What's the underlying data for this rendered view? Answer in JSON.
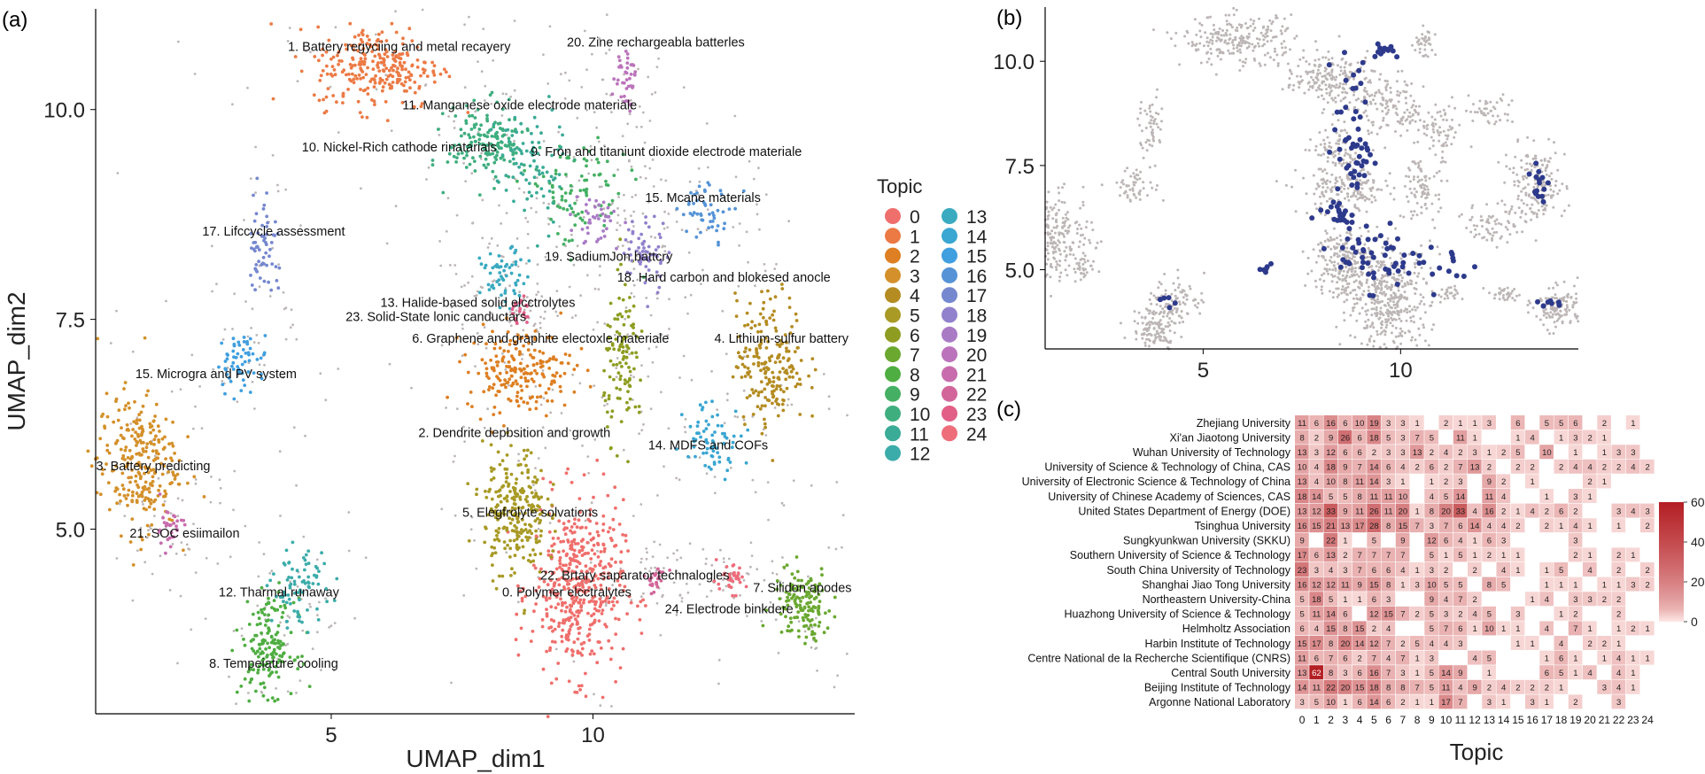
{
  "panels": {
    "a": "(a)",
    "b": "(b)",
    "c": "(c)"
  },
  "colors": {
    "topic": [
      "#ef6f6c",
      "#ec7a45",
      "#dd7f22",
      "#d4902a",
      "#b48c22",
      "#a89a25",
      "#8e9d21",
      "#6aa830",
      "#4fae42",
      "#45b063",
      "#3fae7f",
      "#3aab96",
      "#3cacaa",
      "#3aaac0",
      "#3aa6d2",
      "#3f9fdf",
      "#5593d6",
      "#7587cf",
      "#9181cc",
      "#a97bc5",
      "#bb74bb",
      "#c86cad",
      "#d2669a",
      "#e25f88",
      "#ee6d7b"
    ],
    "grey": "#bdb6b6",
    "highlight": "#2d3a8c",
    "heat_low": "#fde8e6",
    "heat_high": "#b41f24"
  },
  "chart_data": [
    {
      "id": "a",
      "type": "scatter",
      "xlabel": "UMAP_dim1",
      "ylabel": "UMAP_dim2",
      "xlim": [
        0.5,
        15
      ],
      "ylim": [
        2.8,
        11.2
      ],
      "xticks": [
        5,
        10
      ],
      "yticks": [
        5.0,
        7.5,
        10.0
      ],
      "legend_title": "Topic",
      "legend": [
        "0",
        "1",
        "2",
        "3",
        "4",
        "5",
        "6",
        "7",
        "8",
        "9",
        "10",
        "11",
        "12",
        "13",
        "14",
        "15",
        "16",
        "17",
        "18",
        "19",
        "20",
        "21",
        "22",
        "23",
        "24"
      ],
      "clusters": [
        {
          "topic": 0,
          "cx": 9.7,
          "cy": 4.3,
          "rx": 0.8,
          "ry": 0.95,
          "n": 460
        },
        {
          "topic": 1,
          "cx": 5.9,
          "cy": 10.5,
          "rx": 1.1,
          "ry": 0.45,
          "n": 260
        },
        {
          "topic": 2,
          "cx": 8.6,
          "cy": 6.9,
          "rx": 0.9,
          "ry": 0.45,
          "n": 200
        },
        {
          "topic": 3,
          "cx": 1.3,
          "cy": 5.8,
          "rx": 0.7,
          "ry": 0.75,
          "n": 260
        },
        {
          "topic": 4,
          "cx": 13.4,
          "cy": 7.0,
          "rx": 0.6,
          "ry": 0.7,
          "n": 200
        },
        {
          "topic": 5,
          "cx": 8.5,
          "cy": 5.2,
          "rx": 0.55,
          "ry": 0.7,
          "n": 250
        },
        {
          "topic": 6,
          "cx": 10.6,
          "cy": 7.0,
          "rx": 0.35,
          "ry": 0.8,
          "n": 110
        },
        {
          "topic": 7,
          "cx": 14.0,
          "cy": 4.1,
          "rx": 0.5,
          "ry": 0.4,
          "n": 140
        },
        {
          "topic": 8,
          "cx": 3.8,
          "cy": 3.6,
          "rx": 0.45,
          "ry": 0.5,
          "n": 160
        },
        {
          "topic": 9,
          "cx": 9.7,
          "cy": 9.0,
          "rx": 0.9,
          "ry": 0.6,
          "n": 90
        },
        {
          "topic": 10,
          "cx": 8.0,
          "cy": 9.6,
          "rx": 0.7,
          "ry": 0.4,
          "n": 160
        },
        {
          "topic": 11,
          "cx": 8.8,
          "cy": 9.3,
          "rx": 0.6,
          "ry": 0.7,
          "n": 80
        },
        {
          "topic": 12,
          "cx": 4.4,
          "cy": 4.3,
          "rx": 0.5,
          "ry": 0.4,
          "n": 80
        },
        {
          "topic": 13,
          "cx": 8.3,
          "cy": 8.0,
          "rx": 0.4,
          "ry": 0.3,
          "n": 60
        },
        {
          "topic": 14,
          "cx": 12.3,
          "cy": 6.1,
          "rx": 0.5,
          "ry": 0.4,
          "n": 70
        },
        {
          "topic": 15,
          "cx": 3.3,
          "cy": 7.0,
          "rx": 0.45,
          "ry": 0.3,
          "n": 60
        },
        {
          "topic": 16,
          "cx": 12.2,
          "cy": 8.8,
          "rx": 0.5,
          "ry": 0.3,
          "n": 50
        },
        {
          "topic": 17,
          "cx": 3.7,
          "cy": 8.4,
          "rx": 0.25,
          "ry": 0.6,
          "n": 60
        },
        {
          "topic": 18,
          "cx": 11.0,
          "cy": 8.3,
          "rx": 0.4,
          "ry": 0.4,
          "n": 60
        },
        {
          "topic": 19,
          "cx": 10.1,
          "cy": 8.7,
          "rx": 0.4,
          "ry": 0.3,
          "n": 40
        },
        {
          "topic": 20,
          "cx": 10.6,
          "cy": 10.4,
          "rx": 0.2,
          "ry": 0.35,
          "n": 40
        },
        {
          "topic": 21,
          "cx": 1.9,
          "cy": 5.0,
          "rx": 0.25,
          "ry": 0.25,
          "n": 30
        },
        {
          "topic": 22,
          "cx": 11.2,
          "cy": 4.4,
          "rx": 0.2,
          "ry": 0.15,
          "n": 25
        },
        {
          "topic": 23,
          "cx": 8.6,
          "cy": 7.6,
          "rx": 0.2,
          "ry": 0.15,
          "n": 20
        },
        {
          "topic": 24,
          "cx": 12.6,
          "cy": 4.4,
          "rx": 0.3,
          "ry": 0.15,
          "n": 35
        }
      ],
      "annotations": [
        {
          "text": "1. Battery regyciing and metal recayery",
          "x": 6.3,
          "y": 10.7
        },
        {
          "text": "20. Zine rechargeabla batterles",
          "x": 11.2,
          "y": 10.75
        },
        {
          "text": "11. Manganese oxide electrode materiale",
          "x": 8.6,
          "y": 10.0
        },
        {
          "text": "10. Nickel-Rich cathode rinatarials",
          "x": 6.3,
          "y": 9.5
        },
        {
          "text": "9. Fron and titaniunt dioxide electrode materiale",
          "x": 11.4,
          "y": 9.45
        },
        {
          "text": "15. Mcane materials",
          "x": 12.1,
          "y": 8.9
        },
        {
          "text": "17. Lifccycle assessment",
          "x": 3.9,
          "y": 8.5
        },
        {
          "text": "19. SadiumJon battcry",
          "x": 10.3,
          "y": 8.2
        },
        {
          "text": "18. Hard carbon and blokesed anocle",
          "x": 12.5,
          "y": 7.95
        },
        {
          "text": "13. Halide-based solid elcctrolytes",
          "x": 7.8,
          "y": 7.65
        },
        {
          "text": "23. Solid-State lonic canductars",
          "x": 7.0,
          "y": 7.48
        },
        {
          "text": "6. Graphene and graphite electoxle materiale",
          "x": 9.0,
          "y": 7.22
        },
        {
          "text": "4. Lithium-sulfur battery",
          "x": 13.6,
          "y": 7.22
        },
        {
          "text": "15. Microgra and PV system",
          "x": 2.8,
          "y": 6.8
        },
        {
          "text": "2. Dendrite depbsition and growth",
          "x": 8.5,
          "y": 6.1
        },
        {
          "text": "14. MDFS and COFs",
          "x": 12.2,
          "y": 5.95
        },
        {
          "text": "3. Battery predicting",
          "x": 1.6,
          "y": 5.7
        },
        {
          "text": "5. Elegfrolyte solvations",
          "x": 8.8,
          "y": 5.15
        },
        {
          "text": "21. SOC esiimailon",
          "x": 2.2,
          "y": 4.9
        },
        {
          "text": "22. Brtary saparator technalogles",
          "x": 10.8,
          "y": 4.4
        },
        {
          "text": "7. Silidon apodes",
          "x": 14.0,
          "y": 4.25
        },
        {
          "text": "12. Tharmal runaway",
          "x": 4.0,
          "y": 4.2
        },
        {
          "text": "0. Polymer elcctralytes",
          "x": 9.5,
          "y": 4.2
        },
        {
          "text": "24. Electrode binkdere",
          "x": 12.6,
          "y": 4.0
        },
        {
          "text": "8. Tempeiature cooling",
          "x": 3.9,
          "y": 3.35
        }
      ]
    },
    {
      "id": "b",
      "type": "scatter",
      "xlim": [
        1,
        14.5
      ],
      "ylim": [
        3.1,
        11.3
      ],
      "xticks": [
        5,
        10
      ],
      "yticks": [
        5.0,
        7.5,
        10.0
      ],
      "series": [
        {
          "values_from": "grey background (all papers)"
        },
        {
          "values_from": "highlighted papers"
        }
      ],
      "highlight_groups": [
        {
          "cx": 8.8,
          "cy": 8.0,
          "rx": 0.45,
          "ry": 1.9,
          "n": 60
        },
        {
          "cx": 9.5,
          "cy": 5.3,
          "rx": 1.0,
          "ry": 0.7,
          "n": 50
        },
        {
          "cx": 8.2,
          "cy": 6.3,
          "rx": 0.8,
          "ry": 0.3,
          "n": 15
        },
        {
          "cx": 9.6,
          "cy": 10.3,
          "rx": 0.4,
          "ry": 0.2,
          "n": 12
        },
        {
          "cx": 13.5,
          "cy": 7.0,
          "rx": 0.25,
          "ry": 0.6,
          "n": 15
        },
        {
          "cx": 13.8,
          "cy": 4.2,
          "rx": 0.3,
          "ry": 0.1,
          "n": 8
        },
        {
          "cx": 4.1,
          "cy": 4.3,
          "rx": 0.3,
          "ry": 0.15,
          "n": 6
        },
        {
          "cx": 11.4,
          "cy": 5.0,
          "rx": 0.6,
          "ry": 0.5,
          "n": 12
        },
        {
          "cx": 6.6,
          "cy": 5.0,
          "rx": 0.2,
          "ry": 0.2,
          "n": 6
        }
      ]
    },
    {
      "id": "c",
      "type": "heatmap",
      "xlabel": "Topic",
      "categories": [
        "0",
        "1",
        "2",
        "3",
        "4",
        "5",
        "6",
        "7",
        "8",
        "9",
        "10",
        "11",
        "12",
        "13",
        "14",
        "15",
        "16",
        "17",
        "18",
        "19",
        "20",
        "21",
        "22",
        "23",
        "24"
      ],
      "rows": [
        "Zhejiang University",
        "Xi'an Jiaotong University",
        "Wuhan University of Technology",
        "University of Science & Technology of China, CAS",
        "University of Electronic Science & Technology of China",
        "University of Chinese Academy of Sciences, CAS",
        "United States Department of Energy (DOE)",
        "Tsinghua University",
        "Sungkyunkwan University (SKKU)",
        "Southern University of Science & Technology",
        "South China University of Technology",
        "Shanghai Jiao Tong University",
        "Northeastern University-China",
        "Huazhong University of Science & Technology",
        "Helmholtz Association",
        "Harbin Institute of Technology",
        "Centre National de la Recherche Scientifique (CNRS)",
        "Central South University",
        "Beijing Institute of Technology",
        "Argonne National Laboratory"
      ],
      "values": [
        [
          11,
          6,
          16,
          6,
          10,
          19,
          3,
          3,
          1,
          null,
          2,
          1,
          1,
          3,
          null,
          6,
          null,
          5,
          5,
          6,
          null,
          2,
          null,
          1,
          null
        ],
        [
          8,
          2,
          9,
          26,
          6,
          18,
          5,
          3,
          7,
          5,
          null,
          11,
          1,
          null,
          null,
          1,
          4,
          null,
          1,
          3,
          2,
          1,
          null,
          null,
          null
        ],
        [
          13,
          3,
          12,
          6,
          6,
          2,
          3,
          3,
          13,
          2,
          4,
          2,
          3,
          1,
          2,
          5,
          null,
          10,
          null,
          1,
          null,
          1,
          3,
          3,
          null
        ],
        [
          10,
          4,
          18,
          9,
          7,
          14,
          6,
          4,
          2,
          6,
          2,
          7,
          13,
          2,
          null,
          2,
          2,
          null,
          2,
          4,
          4,
          2,
          2,
          4,
          2
        ],
        [
          13,
          4,
          10,
          8,
          11,
          14,
          3,
          1,
          null,
          1,
          2,
          3,
          null,
          9,
          2,
          null,
          1,
          null,
          null,
          null,
          2,
          1,
          null,
          null,
          null
        ],
        [
          18,
          14,
          5,
          5,
          8,
          11,
          11,
          10,
          null,
          4,
          5,
          14,
          null,
          11,
          4,
          null,
          null,
          1,
          null,
          3,
          1,
          null,
          null,
          null,
          null
        ],
        [
          13,
          12,
          33,
          9,
          11,
          26,
          11,
          20,
          1,
          8,
          20,
          33,
          4,
          16,
          2,
          1,
          4,
          2,
          6,
          2,
          null,
          null,
          3,
          4,
          3
        ],
        [
          16,
          15,
          21,
          13,
          17,
          28,
          8,
          15,
          7,
          3,
          7,
          6,
          14,
          4,
          4,
          2,
          null,
          2,
          1,
          4,
          1,
          null,
          1,
          null,
          2
        ],
        [
          9,
          null,
          22,
          1,
          null,
          5,
          null,
          9,
          null,
          12,
          6,
          4,
          1,
          6,
          3,
          null,
          null,
          null,
          null,
          3,
          null,
          null,
          null,
          null,
          null
        ],
        [
          17,
          6,
          13,
          2,
          7,
          7,
          7,
          7,
          null,
          5,
          1,
          5,
          1,
          2,
          1,
          1,
          null,
          null,
          null,
          2,
          1,
          null,
          2,
          1,
          null
        ],
        [
          23,
          3,
          4,
          3,
          7,
          6,
          6,
          4,
          1,
          3,
          2,
          null,
          2,
          null,
          4,
          1,
          null,
          1,
          5,
          null,
          4,
          null,
          2,
          null,
          2
        ],
        [
          16,
          12,
          12,
          11,
          9,
          15,
          8,
          1,
          3,
          10,
          5,
          5,
          null,
          8,
          5,
          null,
          null,
          1,
          1,
          1,
          null,
          1,
          1,
          3,
          2
        ],
        [
          5,
          18,
          5,
          1,
          1,
          6,
          3,
          null,
          null,
          9,
          4,
          7,
          2,
          null,
          null,
          null,
          1,
          4,
          null,
          3,
          3,
          2,
          2,
          null,
          null
        ],
        [
          5,
          11,
          14,
          6,
          null,
          12,
          15,
          7,
          2,
          5,
          3,
          2,
          4,
          5,
          null,
          3,
          null,
          null,
          1,
          2,
          null,
          null,
          2,
          null,
          null
        ],
        [
          6,
          4,
          15,
          8,
          15,
          2,
          4,
          null,
          null,
          5,
          7,
          6,
          1,
          10,
          1,
          1,
          null,
          4,
          null,
          7,
          1,
          null,
          1,
          2,
          1
        ],
        [
          15,
          17,
          8,
          20,
          14,
          12,
          7,
          2,
          5,
          4,
          4,
          3,
          null,
          null,
          null,
          1,
          1,
          null,
          4,
          null,
          2,
          2,
          1,
          null,
          null
        ],
        [
          11,
          6,
          7,
          6,
          2,
          7,
          4,
          7,
          1,
          3,
          null,
          null,
          4,
          5,
          null,
          null,
          null,
          1,
          6,
          1,
          null,
          1,
          4,
          1,
          1
        ],
        [
          13,
          62,
          8,
          3,
          6,
          16,
          7,
          3,
          1,
          5,
          14,
          9,
          null,
          1,
          null,
          null,
          null,
          6,
          5,
          1,
          4,
          null,
          4,
          1,
          null
        ],
        [
          14,
          11,
          22,
          20,
          15,
          18,
          8,
          8,
          7,
          5,
          11,
          4,
          9,
          2,
          4,
          2,
          2,
          2,
          1,
          null,
          null,
          3,
          4,
          1,
          null
        ],
        [
          3,
          5,
          10,
          1,
          6,
          14,
          6,
          2,
          1,
          1,
          17,
          7,
          null,
          3,
          1,
          null,
          3,
          1,
          null,
          2,
          null,
          null,
          3,
          null,
          null
        ]
      ],
      "colorbar": {
        "min": 0,
        "max": 60,
        "ticks": [
          0,
          20,
          40,
          60
        ]
      }
    }
  ]
}
